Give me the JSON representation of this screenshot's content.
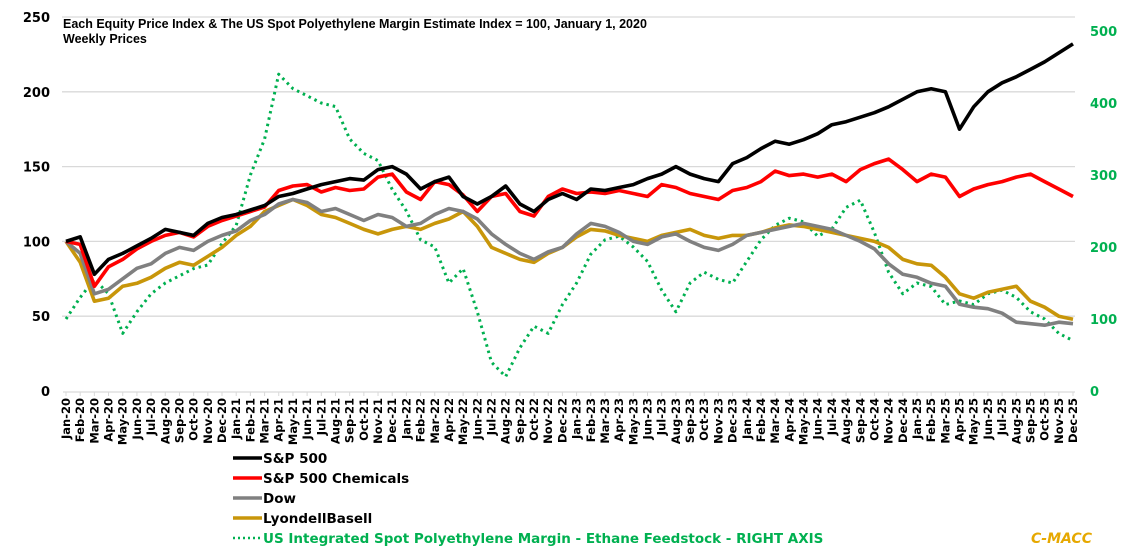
{
  "chart_data": {
    "type": "line",
    "title": "Each Equity Price Index & The US Spot Polyethylene Margin Estimate Index = 100, January 1, 2020",
    "subtitle": "Weekly Prices",
    "xlabel": "",
    "ylabel": "",
    "ylim": [
      0,
      250
    ],
    "yticks": [
      "0",
      "50",
      "100",
      "150",
      "200",
      "250"
    ],
    "y2lim": [
      0,
      500
    ],
    "y2ticks": [
      "0",
      "100",
      "200",
      "300",
      "400",
      "500"
    ],
    "grid": true,
    "legend_position": "bottom-left",
    "brand": "C-MACC",
    "x": [
      "Jan-20",
      "Feb-20",
      "Mar-20",
      "Apr-20",
      "May-20",
      "Jun-20",
      "Jul-20",
      "Aug-20",
      "Sep-20",
      "Oct-20",
      "Nov-20",
      "Dec-20",
      "Jan-21",
      "Feb-21",
      "Mar-21",
      "Apr-21",
      "May-21",
      "Jun-21",
      "Jul-21",
      "Aug-21",
      "Sep-21",
      "Oct-21",
      "Nov-21",
      "Dec-21",
      "Jan-22",
      "Feb-22",
      "Mar-22",
      "Apr-22",
      "May-22",
      "Jun-22",
      "Jul-22",
      "Aug-22",
      "Sep-22",
      "Oct-22",
      "Nov-22",
      "Dec-22",
      "Jan-23",
      "Feb-23",
      "Mar-23",
      "Apr-23",
      "May-23",
      "Jun-23",
      "Jul-23",
      "Aug-23",
      "Sep-23",
      "Oct-23",
      "Nov-23",
      "Dec-23",
      "Jan-24",
      "Feb-24",
      "Mar-24",
      "Apr-24",
      "May-24",
      "Jun-24",
      "Jul-24",
      "Aug-24",
      "Sep-24",
      "Oct-24",
      "Nov-24",
      "Dec-24",
      "Jan-25",
      "Feb-25",
      "Mar-25",
      "Apr-25",
      "May-25",
      "Jun-25",
      "Jul-25",
      "Aug-25",
      "Sep-25",
      "Oct-25",
      "Nov-25",
      "Dec-25"
    ],
    "series": [
      {
        "name": "S&P 500",
        "axis": "left",
        "color": "#000000",
        "style": "solid",
        "values": [
          100,
          103,
          78,
          88,
          92,
          97,
          102,
          108,
          106,
          104,
          112,
          116,
          118,
          121,
          124,
          130,
          132,
          135,
          138,
          140,
          142,
          141,
          148,
          150,
          145,
          135,
          140,
          143,
          130,
          125,
          130,
          137,
          125,
          120,
          128,
          132,
          128,
          135,
          134,
          136,
          138,
          142,
          145,
          150,
          145,
          142,
          140,
          152,
          156,
          162,
          167,
          165,
          168,
          172,
          178,
          180,
          183,
          186,
          190,
          195,
          200,
          202,
          200,
          175,
          190,
          200,
          206,
          210,
          215,
          220,
          226,
          232
        ]
      },
      {
        "name": "S&P 500 Chemicals",
        "axis": "left",
        "color": "#ff0000",
        "style": "solid",
        "values": [
          100,
          98,
          70,
          83,
          88,
          95,
          100,
          104,
          106,
          103,
          110,
          114,
          117,
          120,
          123,
          134,
          137,
          138,
          133,
          136,
          134,
          135,
          143,
          145,
          133,
          128,
          140,
          138,
          131,
          120,
          130,
          132,
          120,
          117,
          130,
          135,
          132,
          133,
          132,
          134,
          132,
          130,
          138,
          136,
          132,
          130,
          128,
          134,
          136,
          140,
          147,
          144,
          145,
          143,
          145,
          140,
          148,
          152,
          155,
          148,
          140,
          145,
          143,
          130,
          135,
          138,
          140,
          143,
          145,
          140,
          135,
          130
        ]
      },
      {
        "name": "Dow",
        "axis": "left",
        "color": "#808080",
        "style": "solid",
        "values": [
          100,
          92,
          65,
          68,
          75,
          82,
          85,
          92,
          96,
          94,
          100,
          104,
          107,
          114,
          118,
          125,
          128,
          126,
          120,
          122,
          118,
          114,
          118,
          116,
          110,
          112,
          118,
          122,
          120,
          115,
          105,
          98,
          92,
          88,
          93,
          96,
          105,
          112,
          110,
          106,
          100,
          98,
          103,
          105,
          100,
          96,
          94,
          98,
          104,
          106,
          108,
          110,
          112,
          110,
          108,
          104,
          100,
          95,
          85,
          78,
          76,
          72,
          70,
          58,
          56,
          55,
          52,
          46,
          45,
          44,
          46,
          45
        ]
      },
      {
        "name": "LyondellBasell",
        "axis": "left",
        "color": "#c8960a",
        "style": "solid",
        "values": [
          100,
          86,
          60,
          62,
          70,
          72,
          76,
          82,
          86,
          84,
          90,
          96,
          104,
          110,
          120,
          124,
          128,
          124,
          118,
          116,
          112,
          108,
          105,
          108,
          110,
          108,
          112,
          115,
          120,
          110,
          96,
          92,
          88,
          86,
          92,
          96,
          103,
          108,
          107,
          104,
          102,
          100,
          104,
          106,
          108,
          104,
          102,
          104,
          104,
          106,
          109,
          111,
          110,
          108,
          106,
          104,
          102,
          100,
          96,
          88,
          85,
          84,
          76,
          65,
          62,
          66,
          68,
          70,
          60,
          56,
          50,
          48
        ]
      },
      {
        "name": "US Integrated Spot Polyethylene Margin - Ethane Feedstock - RIGHT AXIS",
        "axis": "right",
        "color": "#00b050",
        "style": "dotted",
        "values": [
          100,
          130,
          155,
          135,
          80,
          110,
          135,
          150,
          160,
          170,
          175,
          205,
          230,
          300,
          350,
          440,
          420,
          410,
          400,
          395,
          350,
          330,
          320,
          280,
          250,
          210,
          200,
          150,
          170,
          110,
          40,
          20,
          60,
          90,
          80,
          120,
          150,
          190,
          210,
          215,
          200,
          180,
          140,
          110,
          150,
          165,
          155,
          150,
          180,
          210,
          230,
          240,
          235,
          215,
          225,
          255,
          265,
          220,
          165,
          135,
          150,
          145,
          120,
          125,
          120,
          135,
          140,
          130,
          110,
          100,
          80,
          70
        ]
      }
    ]
  }
}
